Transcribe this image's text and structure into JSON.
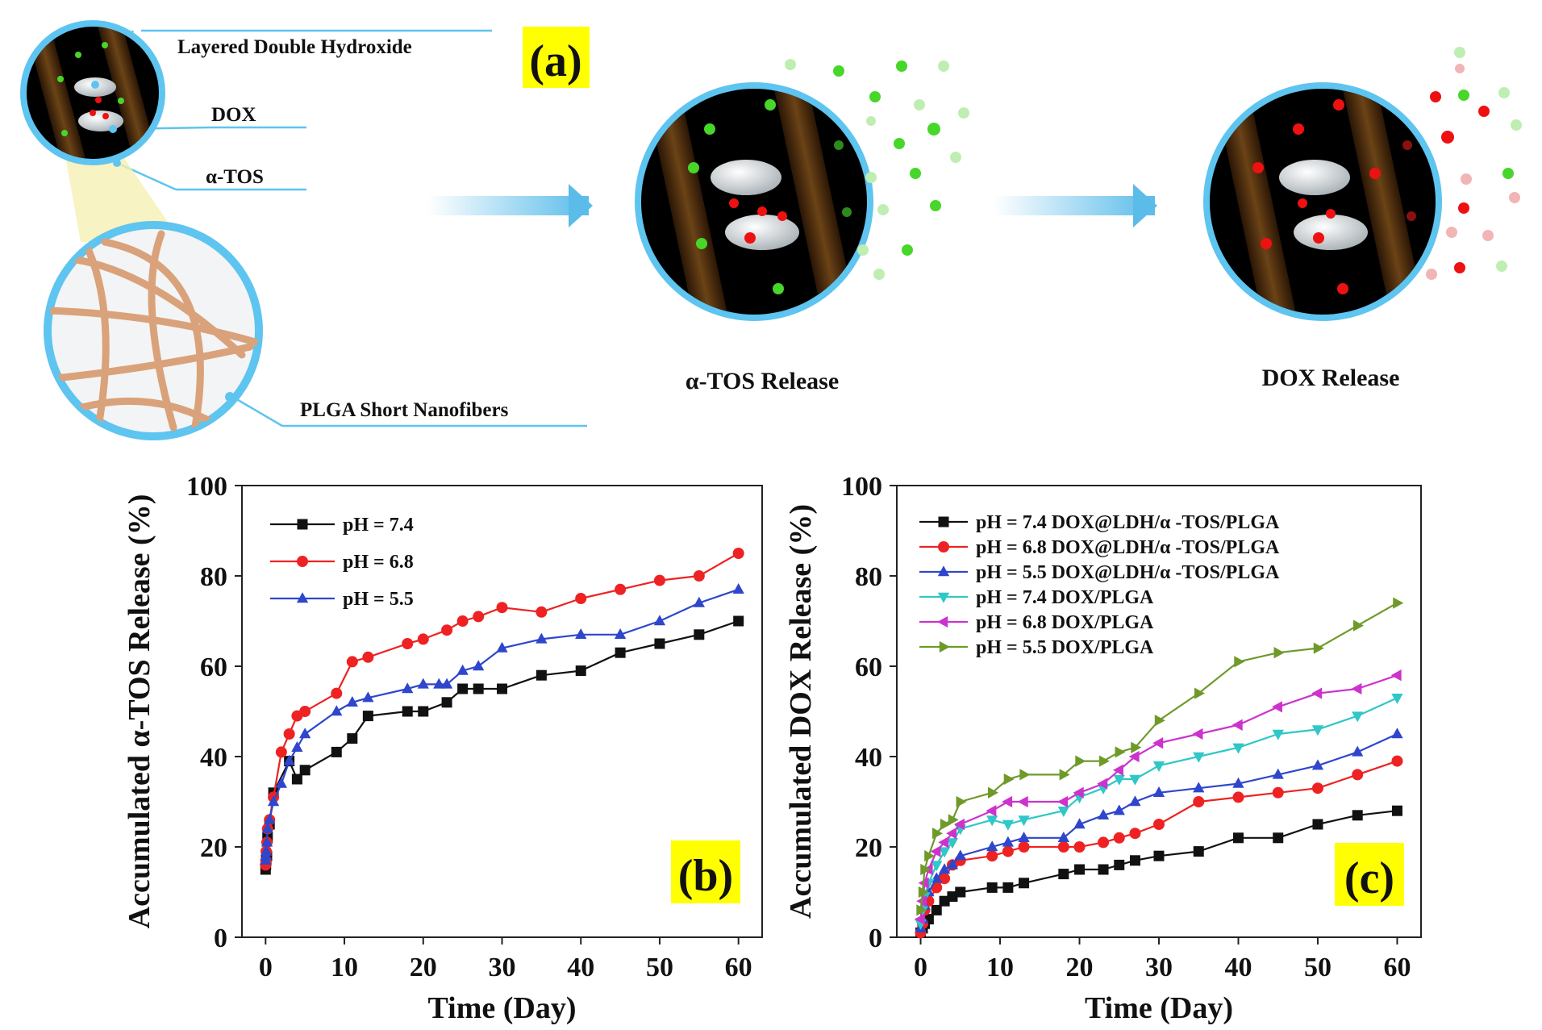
{
  "panel_a": {
    "tag": "(a)",
    "labels": {
      "ldh": "Layered Double Hydroxide",
      "dox": "DOX",
      "tos": "α-TOS",
      "plga": "PLGA Short Nanofibers",
      "tos_release": "α-TOS Release",
      "dox_release": "DOX Release"
    },
    "colors": {
      "ring": "#5ec4f0",
      "fiber": "#d9a27a",
      "green": "#47d62a",
      "red": "#ee1111",
      "arrow": "#5bbcea"
    }
  },
  "chart_data": [
    {
      "id": "b",
      "tag": "(b)",
      "type": "line",
      "xlabel": "Time (Day)",
      "ylabel": "Accumulated α-TOS Release (%)",
      "xlim": [
        -3,
        63
      ],
      "ylim": [
        0,
        100
      ],
      "xticks": [
        0,
        10,
        20,
        30,
        40,
        50,
        60
      ],
      "yticks": [
        0,
        20,
        40,
        60,
        80,
        100
      ],
      "legend_position": "top-left",
      "series": [
        {
          "name": "pH = 7.4",
          "color": "#111111",
          "marker": "square",
          "x": [
            0,
            0.04,
            0.08,
            0.17,
            0.25,
            0.5,
            1,
            3,
            4,
            5,
            9,
            11,
            13,
            18,
            20,
            23,
            25,
            27,
            30,
            35,
            40,
            45,
            50,
            55,
            60
          ],
          "y": [
            15,
            16,
            17,
            18,
            22,
            25,
            32,
            39,
            35,
            37,
            41,
            44,
            49,
            50,
            50,
            52,
            55,
            55,
            55,
            58,
            59,
            63,
            65,
            67,
            70
          ]
        },
        {
          "name": "pH = 6.8",
          "color": "#ee2222",
          "marker": "circle",
          "x": [
            0,
            0.04,
            0.08,
            0.17,
            0.25,
            0.5,
            1,
            2,
            3,
            4,
            5,
            9,
            11,
            13,
            18,
            20,
            23,
            25,
            27,
            30,
            35,
            40,
            45,
            50,
            55,
            60
          ],
          "y": [
            16,
            17,
            19,
            21,
            24,
            26,
            31,
            41,
            45,
            49,
            50,
            54,
            61,
            62,
            65,
            66,
            68,
            70,
            71,
            73,
            72,
            75,
            77,
            79,
            80,
            85
          ]
        },
        {
          "name": "pH = 5.5",
          "color": "#2f46cc",
          "marker": "triangle-up",
          "x": [
            0,
            0.04,
            0.08,
            0.17,
            0.25,
            0.5,
            1,
            2,
            3,
            4,
            5,
            9,
            11,
            13,
            18,
            20,
            22,
            23,
            25,
            27,
            30,
            35,
            40,
            45,
            50,
            55,
            60
          ],
          "y": [
            17,
            18,
            19,
            21,
            24,
            26,
            30,
            34,
            39,
            42,
            45,
            50,
            52,
            53,
            55,
            56,
            56,
            56,
            59,
            60,
            64,
            66,
            67,
            67,
            70,
            74,
            77
          ]
        }
      ]
    },
    {
      "id": "c",
      "tag": "(c)",
      "type": "line",
      "xlabel": "Time (Day)",
      "ylabel": "Accumulated DOX Release (%)",
      "xlim": [
        -3,
        63
      ],
      "ylim": [
        0,
        100
      ],
      "xticks": [
        0,
        10,
        20,
        30,
        40,
        50,
        60
      ],
      "yticks": [
        0,
        20,
        40,
        60,
        80,
        100
      ],
      "legend_position": "top-left",
      "series": [
        {
          "name": "pH = 7.4 DOX@LDH/α -TOS/PLGA",
          "color": "#111111",
          "marker": "square",
          "x": [
            0,
            0.25,
            0.5,
            1,
            2,
            3,
            4,
            5,
            9,
            11,
            13,
            18,
            20,
            23,
            25,
            27,
            30,
            35,
            40,
            45,
            50,
            55,
            60
          ],
          "y": [
            1,
            2,
            3,
            4,
            6,
            8,
            9,
            10,
            11,
            11,
            12,
            14,
            15,
            15,
            16,
            17,
            18,
            19,
            22,
            22,
            25,
            27,
            28
          ]
        },
        {
          "name": "pH = 6.8 DOX@LDH/α -TOS/PLGA",
          "color": "#ee2222",
          "marker": "circle",
          "x": [
            0,
            0.25,
            0.5,
            1,
            2,
            3,
            4,
            5,
            9,
            11,
            13,
            18,
            20,
            23,
            25,
            27,
            30,
            35,
            40,
            45,
            50,
            55,
            60
          ],
          "y": [
            1,
            3,
            6,
            8,
            11,
            13,
            16,
            17,
            18,
            19,
            20,
            20,
            20,
            21,
            22,
            23,
            25,
            30,
            31,
            32,
            33,
            36,
            39
          ]
        },
        {
          "name": "pH = 5.5 DOX@LDH/α -TOS/PLGA",
          "color": "#2f46cc",
          "marker": "triangle-up",
          "x": [
            0,
            0.25,
            0.5,
            1,
            2,
            3,
            4,
            5,
            9,
            11,
            13,
            18,
            20,
            23,
            25,
            27,
            30,
            35,
            40,
            45,
            50,
            55,
            60
          ],
          "y": [
            2,
            4,
            7,
            10,
            13,
            15,
            16,
            18,
            20,
            21,
            22,
            22,
            25,
            27,
            28,
            30,
            32,
            33,
            34,
            36,
            38,
            41,
            45
          ]
        },
        {
          "name": "pH = 7.4 DOX/PLGA",
          "color": "#2fc7c7",
          "marker": "triangle-down",
          "x": [
            0,
            0.25,
            0.5,
            1,
            2,
            3,
            4,
            5,
            9,
            11,
            13,
            18,
            20,
            23,
            25,
            27,
            30,
            35,
            40,
            45,
            50,
            55,
            60
          ],
          "y": [
            3,
            6,
            9,
            12,
            16,
            19,
            21,
            24,
            26,
            25,
            26,
            28,
            31,
            33,
            35,
            35,
            38,
            40,
            42,
            45,
            46,
            49,
            53
          ]
        },
        {
          "name": "pH = 6.8 DOX/PLGA",
          "color": "#cc33cc",
          "marker": "triangle-left",
          "x": [
            0,
            0.25,
            0.5,
            1,
            2,
            3,
            4,
            5,
            9,
            11,
            13,
            18,
            20,
            23,
            25,
            27,
            30,
            35,
            40,
            45,
            50,
            55,
            60
          ],
          "y": [
            4,
            8,
            12,
            15,
            19,
            21,
            23,
            25,
            28,
            30,
            30,
            30,
            32,
            34,
            37,
            40,
            43,
            45,
            47,
            51,
            54,
            55,
            58
          ]
        },
        {
          "name": "pH = 5.5 DOX/PLGA",
          "color": "#6f9a2a",
          "marker": "triangle-right",
          "x": [
            0,
            0.25,
            0.5,
            1,
            2,
            3,
            4,
            5,
            9,
            11,
            13,
            18,
            20,
            23,
            25,
            27,
            30,
            35,
            40,
            45,
            50,
            55,
            60
          ],
          "y": [
            6,
            10,
            15,
            18,
            23,
            25,
            26,
            30,
            32,
            35,
            36,
            36,
            39,
            39,
            41,
            42,
            48,
            54,
            61,
            63,
            64,
            69,
            74
          ]
        }
      ]
    }
  ]
}
